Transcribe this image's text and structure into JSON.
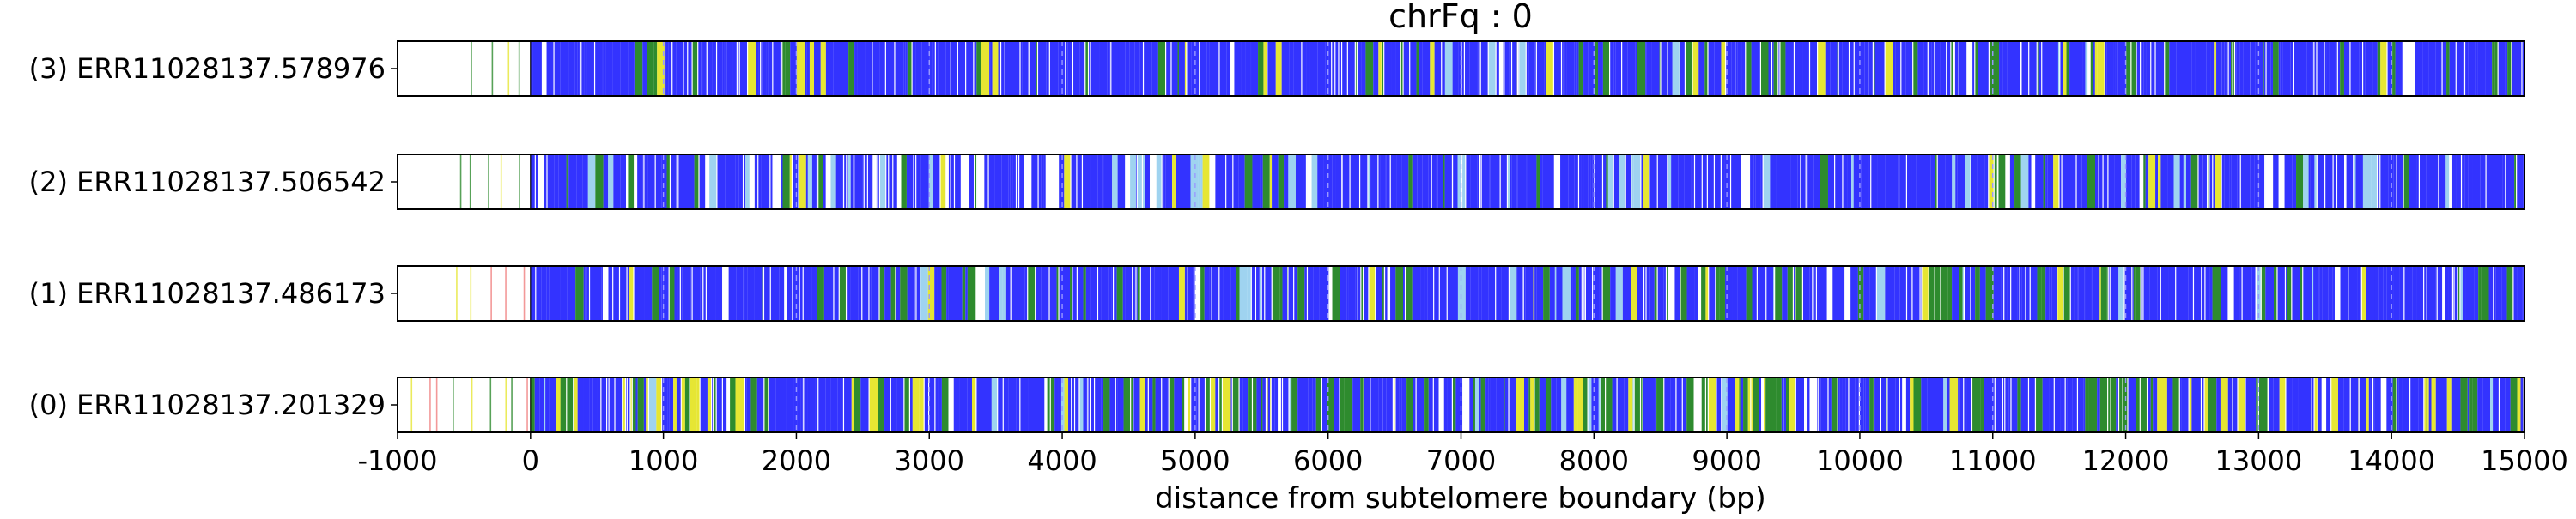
{
  "chart_data": {
    "type": "heatmap",
    "title": "chrFq : 0",
    "xlabel": "distance from subtelomere boundary (bp)",
    "ylabel": "",
    "xlim": [
      -1000,
      15000
    ],
    "xticks": [
      -1000,
      0,
      1000,
      2000,
      3000,
      4000,
      5000,
      6000,
      7000,
      8000,
      9000,
      10000,
      11000,
      12000,
      13000,
      14000,
      15000
    ],
    "grid": "dashed vertical lines at each 1000 bp",
    "colors": {
      "blue": "#3333ff",
      "green": "#2e8b2e",
      "yellow": "#e6e633",
      "lightblue": "#9fd3f0",
      "pink": "#f08080",
      "white": "#ffffff"
    },
    "reads": [
      {
        "label": "(3) ERR11028137.578976",
        "start": -1000,
        "end": 15000,
        "region_start": -450,
        "blue_fraction": 0.8,
        "green_fraction": 0.12,
        "yellow_fraction": 0.04
      },
      {
        "label": "(2) ERR11028137.506542",
        "start": -1000,
        "end": 15000,
        "region_start": -530,
        "blue_fraction": 0.72,
        "green_fraction": 0.08,
        "yellow_fraction": 0.02
      },
      {
        "label": "(1) ERR11028137.486173",
        "start": -1000,
        "end": 15000,
        "region_start": -560,
        "blue_fraction": 0.74,
        "green_fraction": 0.14,
        "yellow_fraction": 0.03
      },
      {
        "label": "(0) ERR11028137.201329",
        "start": -1000,
        "end": 15000,
        "region_start": -900,
        "blue_fraction": 0.55,
        "green_fraction": 0.25,
        "yellow_fraction": 0.12
      }
    ]
  }
}
